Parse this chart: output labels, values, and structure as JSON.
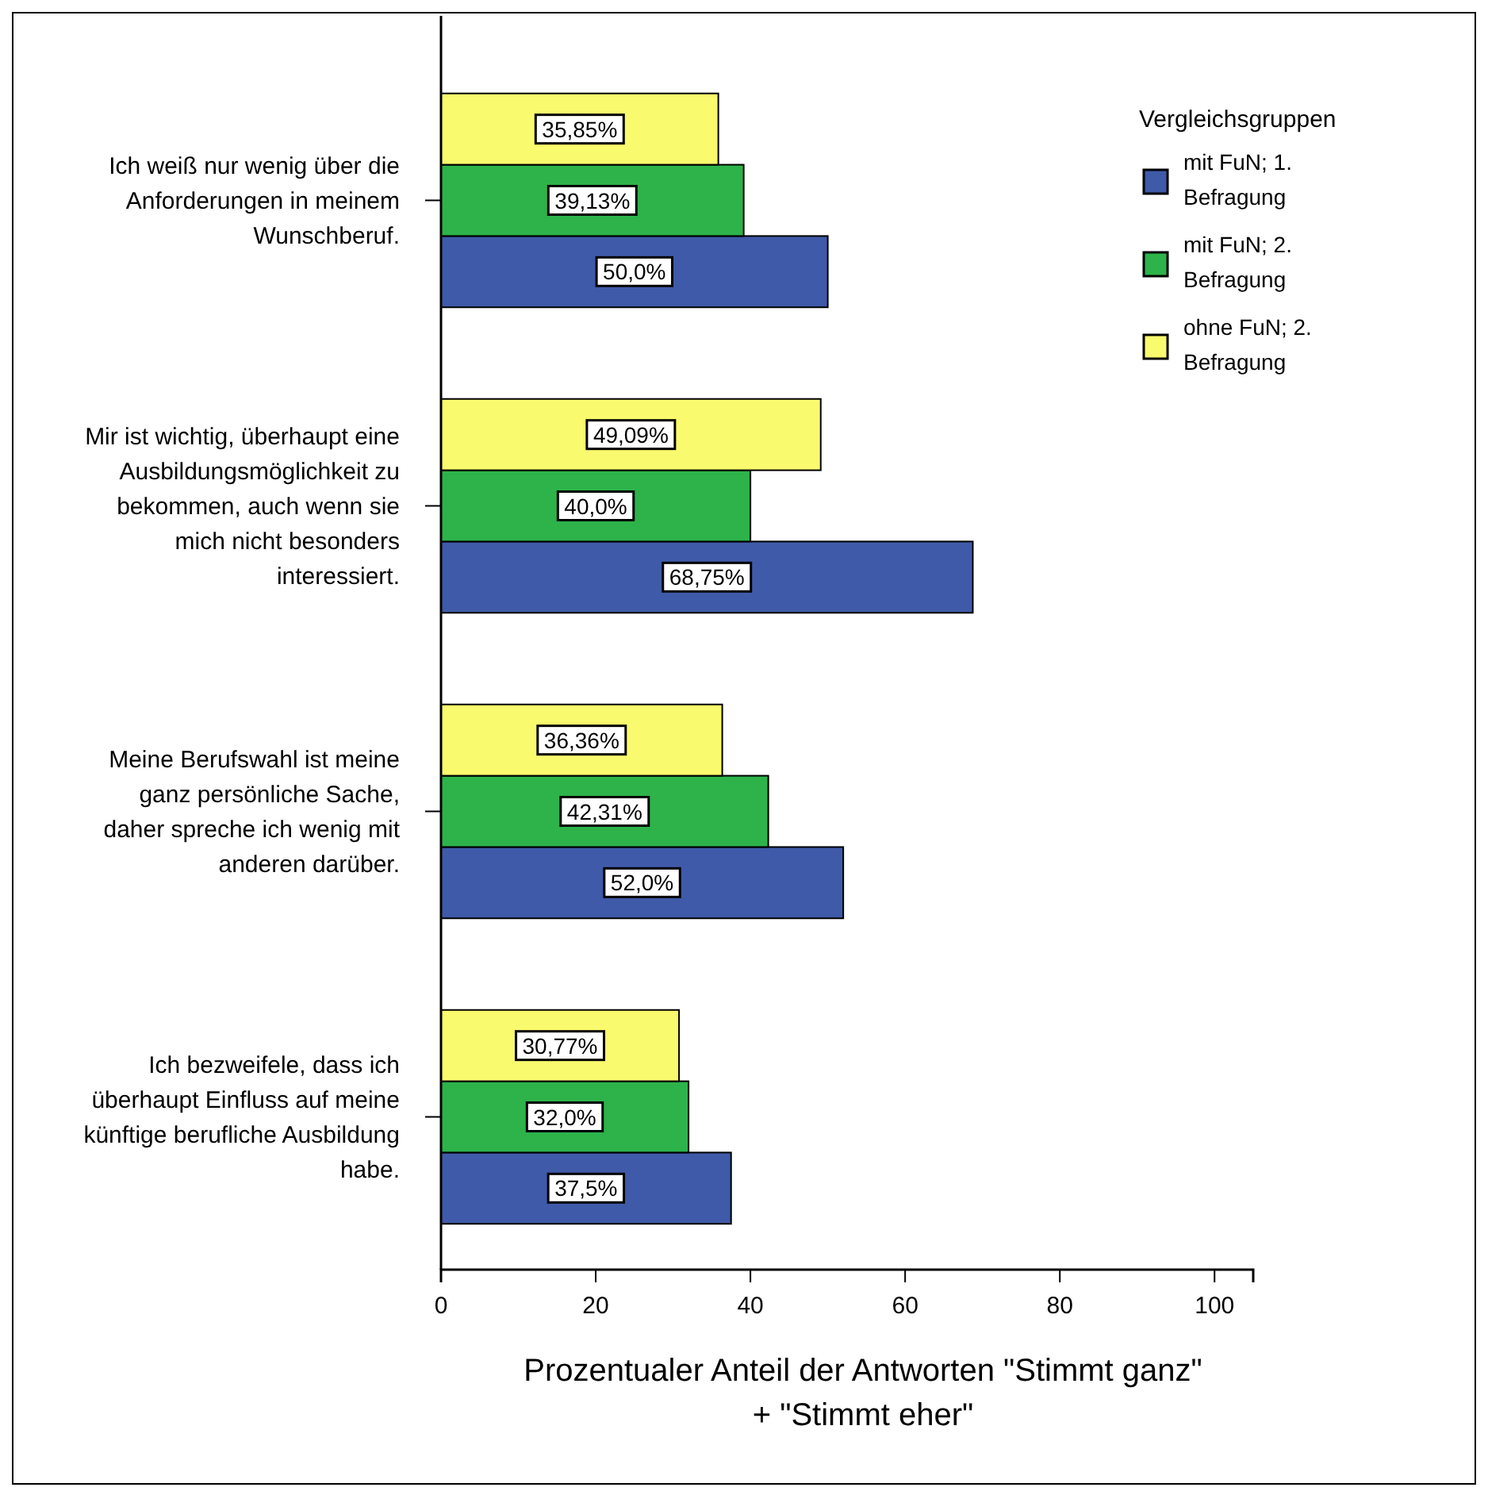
{
  "chart_data": {
    "type": "bar",
    "orientation": "horizontal",
    "categories": [
      "Ich weiß nur wenig über die Anforderungen in meinem Wunschberuf.",
      "Mir ist wichtig, überhaupt eine Ausbildungsmöglichkeit zu bekommen, auch wenn sie mich nicht besonders interessiert.",
      "Meine Berufswahl ist meine ganz persönliche Sache, daher spreche ich wenig mit anderen darüber.",
      "Ich bezweifele, dass ich überhaupt Einfluss auf meine künftige berufliche Ausbildung habe."
    ],
    "series": [
      {
        "name": "mit FuN; 1. Befragung",
        "color": "#3f5aa8",
        "values": [
          50.0,
          68.75,
          52.0,
          37.5
        ],
        "value_labels": [
          "50,0%",
          "68,75%",
          "52,0%",
          "37,5%"
        ]
      },
      {
        "name": "mit FuN; 2. Befragung",
        "color": "#2db34a",
        "values": [
          39.13,
          40.0,
          42.31,
          32.0
        ],
        "value_labels": [
          "39,13%",
          "40,0%",
          "42,31%",
          "32,0%"
        ]
      },
      {
        "name": "ohne FuN; 2. Befragung",
        "color": "#fafa6e",
        "values": [
          35.85,
          49.09,
          36.36,
          30.77
        ],
        "value_labels": [
          "35,85%",
          "49,09%",
          "36,36%",
          "30,77%"
        ]
      }
    ],
    "xlabel": "Prozentualer Anteil der Antworten \"Stimmt ganz\" + \"Stimmt eher\"",
    "xlim": [
      0,
      105
    ],
    "xticks": [
      0,
      20,
      40,
      60,
      80,
      100
    ],
    "legend_title": "Vergleichsgruppen",
    "legend": "top right"
  }
}
